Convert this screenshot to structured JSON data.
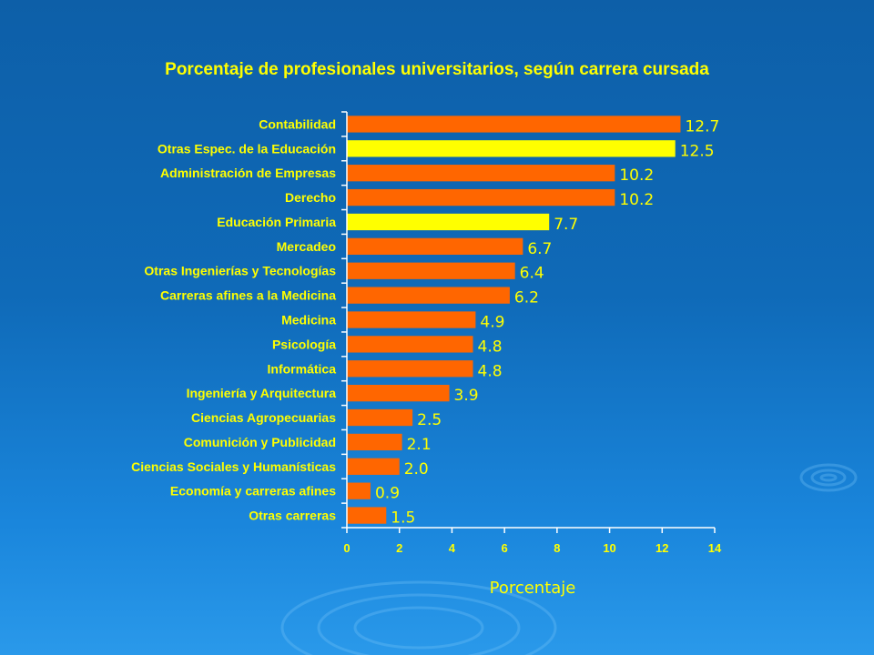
{
  "chart_data": {
    "type": "bar",
    "orientation": "horizontal",
    "title": "Porcentaje de profesionales universitarios, según carrera cursada",
    "xlabel": "Porcentaje",
    "ylabel": "",
    "xlim": [
      0,
      14
    ],
    "xticks": [
      0,
      2,
      4,
      6,
      8,
      10,
      12,
      14
    ],
    "grid": false,
    "categories": [
      "Contabilidad",
      "Otras Espec. de la Educación",
      "Administración de Empresas",
      "Derecho",
      "Educación Primaria",
      "Mercadeo",
      "Otras Ingenierías y Tecnologías",
      "Carreras afines a la Medicina",
      "Medicina",
      "Psicología",
      "Informática",
      "Ingeniería y Arquitectura",
      "Ciencias Agropecuarias",
      "Comunición y Publicidad",
      "Ciencias Sociales y Humanísticas",
      "Economía y carreras afines",
      "Otras carreras"
    ],
    "values": [
      12.7,
      12.5,
      10.2,
      10.2,
      7.7,
      6.7,
      6.4,
      6.2,
      4.9,
      4.8,
      4.8,
      3.9,
      2.5,
      2.1,
      2.0,
      0.9,
      1.5
    ],
    "value_labels": [
      "12.7",
      "12.5",
      "10.2",
      "10.2",
      "7.7",
      "6.7",
      "6.4",
      "6.2",
      "4.9",
      "4.8",
      "4.8",
      "3.9",
      "2.5",
      "2.1",
      "2.0",
      "0.9",
      "1.5"
    ],
    "highlighted": [
      false,
      true,
      false,
      false,
      true,
      false,
      false,
      false,
      false,
      false,
      false,
      false,
      false,
      false,
      false,
      false,
      false
    ],
    "colors": {
      "bar": "#ff6600",
      "highlight": "#ffff00",
      "text": "#ffff00",
      "axis": "#ffffff"
    }
  }
}
